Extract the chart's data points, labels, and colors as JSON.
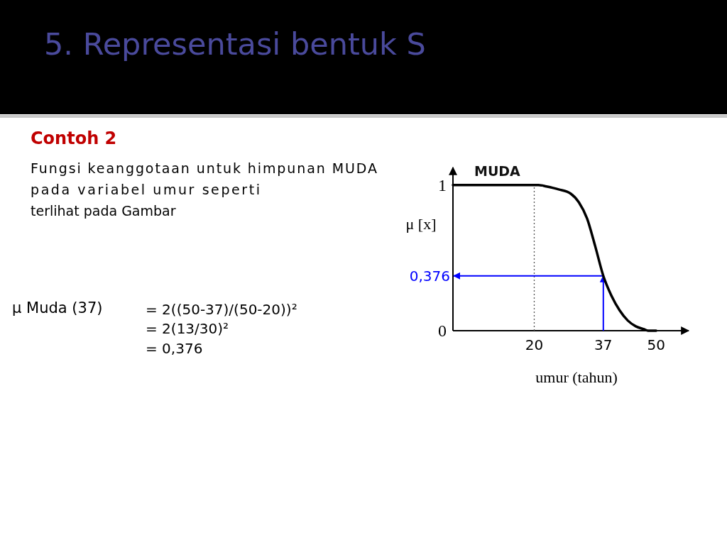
{
  "chart_data": {
    "type": "line",
    "title": "5. Representasi bentuk S",
    "subtitle": "Contoh 2",
    "xlabel": "umur (tahun)",
    "ylabel": "μ [x]",
    "annotations": [
      "Fungsi keanggotaan untuk himpunan MUDA",
      "pada variabel umur seperti",
      "terlihat pada Gambar",
      "μ Muda (37)",
      "= 2((50-37)/(50-20))²",
      "= 2(13/30)²",
      "= 0,376"
    ],
    "x": [
      0,
      20,
      21,
      23,
      26,
      29,
      31,
      33,
      35,
      37,
      39,
      41,
      43,
      45,
      47,
      48,
      50
    ],
    "series": [
      {
        "name": "MUDA",
        "color": "#000000",
        "values": [
          1,
          1,
          1,
          0.99,
          0.97,
          0.94,
          0.88,
          0.77,
          0.58,
          0.376,
          0.24,
          0.14,
          0.07,
          0.03,
          0.01,
          0,
          0
        ]
      }
    ],
    "xlim": [
      0,
      58
    ],
    "ylim": [
      0,
      1.12
    ],
    "xticks": [
      20,
      37,
      50
    ],
    "yticks": [
      0,
      1
    ],
    "ref_lines": [
      {
        "axis": "x",
        "value": 20,
        "color": "#555555",
        "line_style": "dotted"
      },
      {
        "axis": "x",
        "value": 37,
        "color": "#0000ff"
      },
      {
        "axis": "y",
        "value": 0.376,
        "label": "0,376",
        "color": "#0000ff"
      }
    ]
  }
}
